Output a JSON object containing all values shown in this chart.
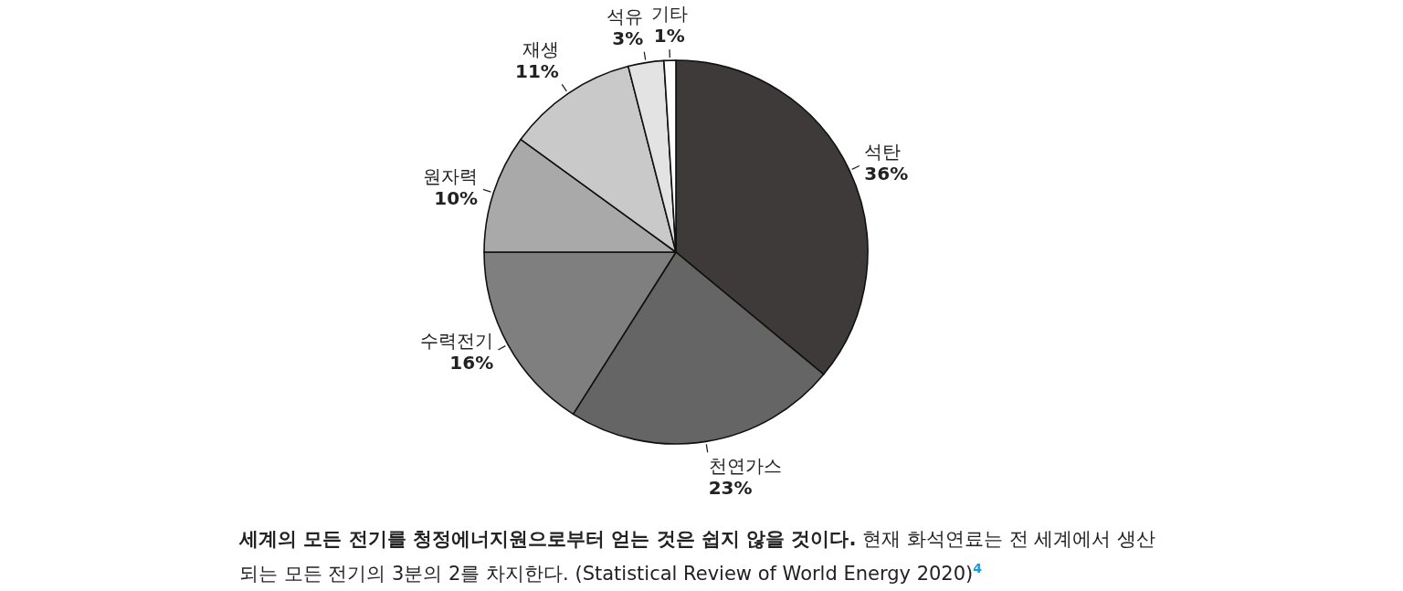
{
  "chart_data": {
    "type": "pie",
    "categories": [
      "석탄",
      "천연가스",
      "수력전기",
      "원자력",
      "재생",
      "석유",
      "기타"
    ],
    "values": [
      36,
      23,
      16,
      10,
      11,
      3,
      1
    ],
    "colors": [
      "#3d3a39",
      "#666565",
      "#7f7f7f",
      "#a9a9a9",
      "#c9c9c9",
      "#e3e3e3",
      "#ffffff"
    ],
    "value_labels": [
      "36%",
      "23%",
      "16%",
      "10%",
      "11%",
      "3%",
      "1%"
    ],
    "annotations": [
      "세계의 모든 전기를 청정에너지원으로부터 얻는 것은 쉽지 않을 것이다.",
      "현재 화석연료는 전 세계에서 생산되는 모든 전기의 3분의 2를 차지한다. (Statistical Review of World Energy 2020)$^{4}$"
    ]
  }
}
